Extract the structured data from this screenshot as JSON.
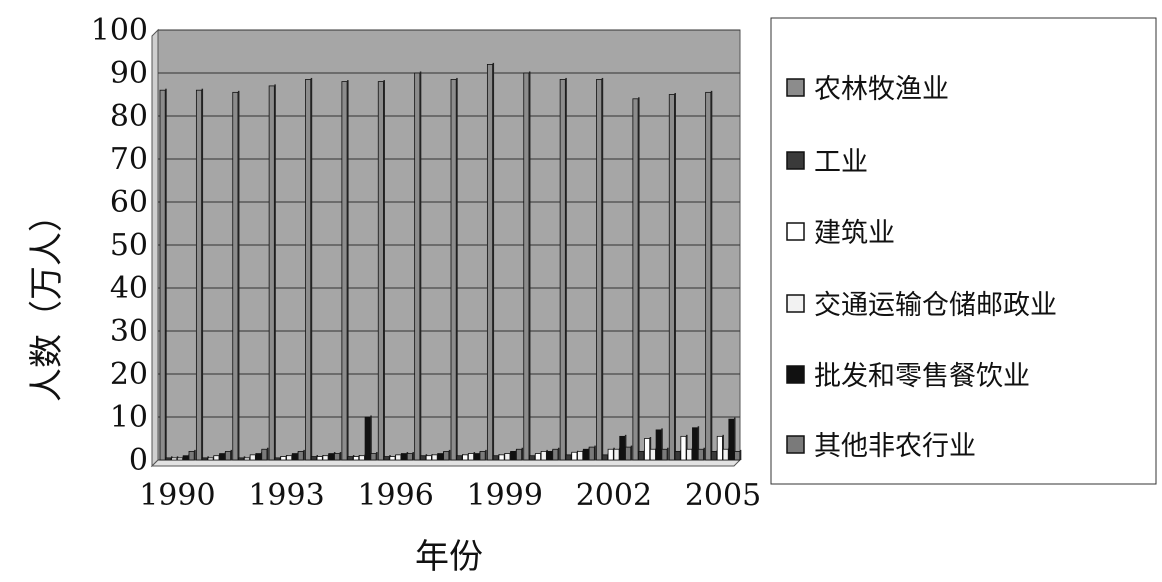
{
  "chart_data": {
    "type": "bar",
    "xlabel": "年份",
    "ylabel": "人数（万人）",
    "ylim": [
      0,
      100
    ],
    "yticks": [
      0,
      10,
      20,
      30,
      40,
      50,
      60,
      70,
      80,
      90,
      100
    ],
    "x_tick_labels": [
      "1990",
      "1993",
      "1996",
      "1999",
      "2002",
      "2005"
    ],
    "grid": true,
    "legend_position": "right",
    "plot_background": "#a6a6a6",
    "categories": [
      1990,
      1991,
      1992,
      1993,
      1994,
      1995,
      1996,
      1997,
      1998,
      1999,
      2000,
      2001,
      2002,
      2003,
      2004,
      2005
    ],
    "series": [
      {
        "name": "农林牧渔业",
        "color": "#8c8c8c",
        "values": [
          86,
          86,
          85.5,
          87,
          88.5,
          88,
          88,
          90,
          88.5,
          92,
          90,
          88.5,
          88.5,
          84,
          85,
          85.5
        ]
      },
      {
        "name": "工业",
        "color": "#3a3a3a",
        "values": [
          0.5,
          0.5,
          0.5,
          0.5,
          0.8,
          0.8,
          0.8,
          1.0,
          1.0,
          1.0,
          1.0,
          1.2,
          1.2,
          2.0,
          2.0,
          2.0
        ]
      },
      {
        "name": "建筑业",
        "color": "#ffffff",
        "values": [
          0.5,
          0.5,
          0.5,
          0.8,
          0.8,
          0.8,
          0.8,
          1.0,
          1.2,
          1.2,
          1.5,
          1.8,
          2.5,
          5.0,
          5.5,
          5.5
        ]
      },
      {
        "name": "交通运输仓储邮政业",
        "color": "#f2f2f2",
        "values": [
          0.5,
          1.0,
          1.2,
          1.0,
          1.0,
          1.0,
          1.2,
          1.2,
          1.5,
          1.5,
          2.0,
          2.0,
          2.5,
          2.5,
          2.5,
          2.5
        ]
      },
      {
        "name": "批发和零售餐饮业",
        "color": "#111111",
        "values": [
          1.0,
          1.5,
          1.5,
          1.5,
          1.5,
          10.0,
          1.5,
          1.5,
          1.5,
          2.0,
          2.0,
          2.5,
          5.5,
          7.0,
          7.5,
          9.5
        ]
      },
      {
        "name": "其他非农行业",
        "color": "#7a7a7a",
        "values": [
          2.0,
          2.0,
          2.5,
          2.0,
          1.5,
          1.5,
          1.5,
          2.0,
          2.0,
          2.5,
          2.5,
          3.0,
          3.0,
          2.5,
          2.5,
          2.0
        ]
      }
    ]
  }
}
